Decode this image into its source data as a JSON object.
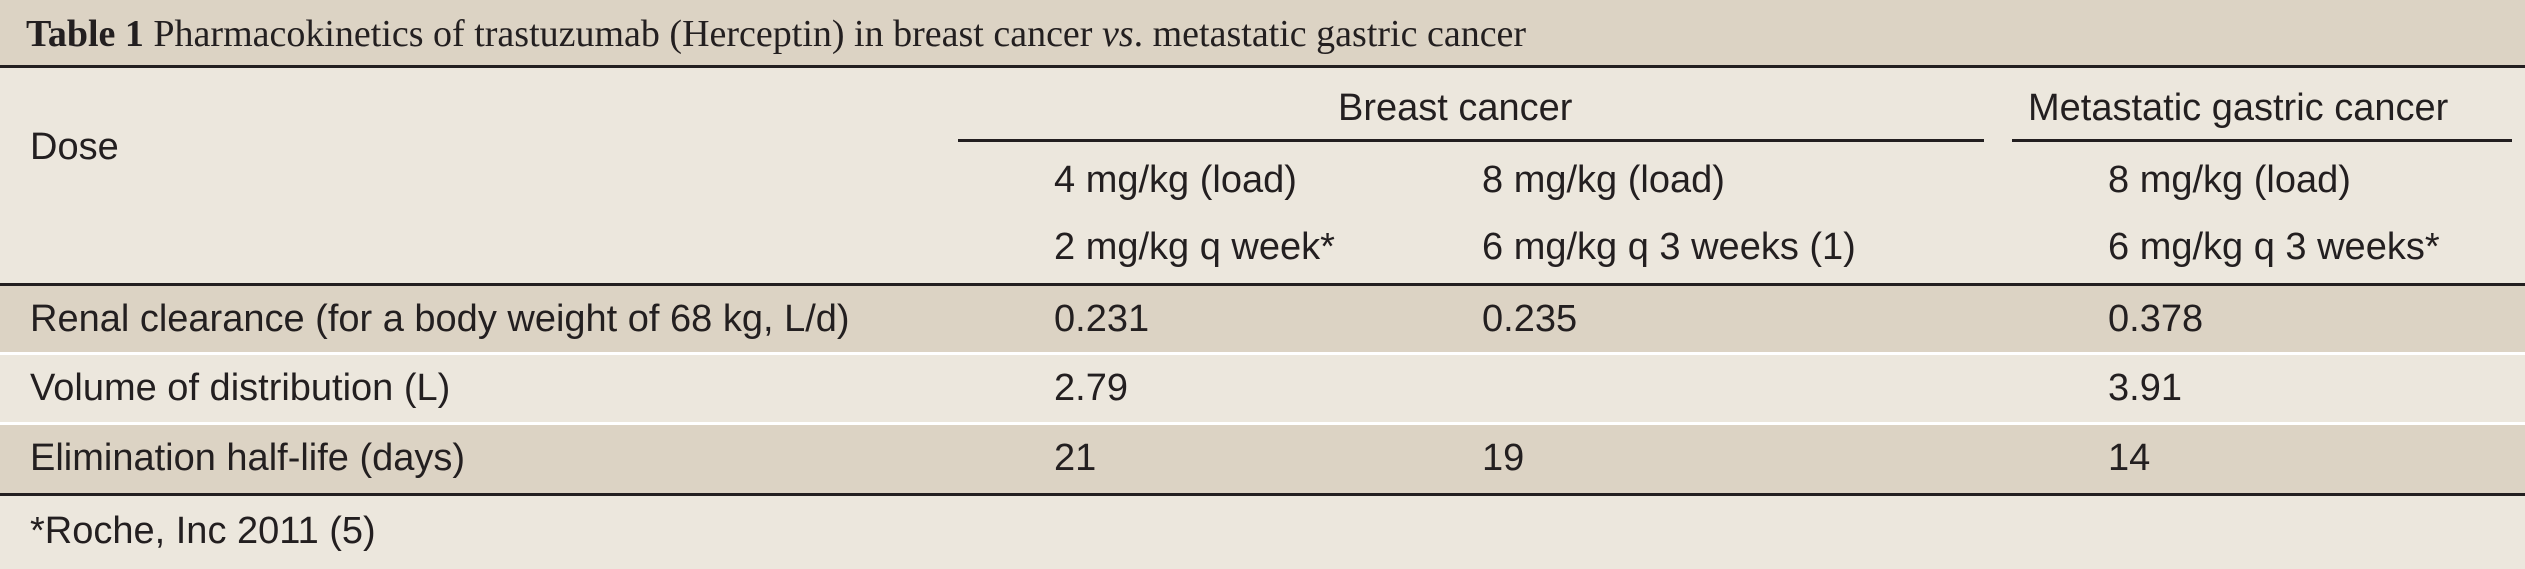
{
  "title": {
    "label": "Table 1",
    "text_before": " Pharmacokinetics of trastuzumab (Herceptin) in breast cancer ",
    "vs": "vs",
    "text_after": ". metastatic gastric cancer"
  },
  "header": {
    "dose": "Dose",
    "breast_cancer": "Breast cancer",
    "metastatic_gastric_cancer": "Metastatic gastric cancer",
    "regimens": [
      {
        "line1": "4 mg/kg (load)",
        "line2": "2 mg/kg q week*"
      },
      {
        "line1": "8 mg/kg (load)",
        "line2": "6 mg/kg q 3 weeks (1)"
      },
      {
        "line1": "8 mg/kg (load)",
        "line2": "6 mg/kg q 3 weeks*"
      }
    ]
  },
  "rows": [
    {
      "label": "Renal clearance (for a body weight of 68 kg, L/d)",
      "values": [
        "0.231",
        "0.235",
        "0.378"
      ]
    },
    {
      "label": "Volume of distribution (L)",
      "values": [
        "2.79",
        "",
        "3.91"
      ]
    },
    {
      "label": "Elimination half-life (days)",
      "values": [
        "21",
        "19",
        "14"
      ]
    }
  ],
  "footnote": "*Roche, Inc 2011 (5)",
  "colors": {
    "background": "#ECE7DD",
    "band": "#DCD3C4",
    "rule": "#231f20"
  }
}
